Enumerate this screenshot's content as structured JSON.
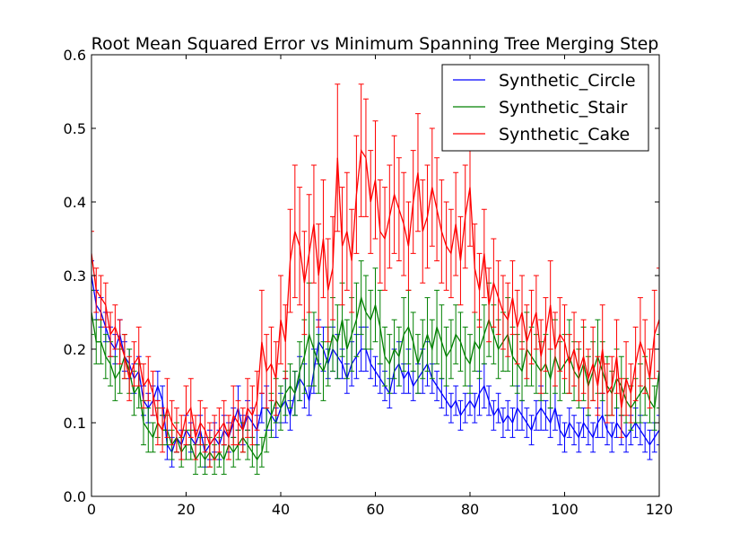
{
  "chart_data": {
    "type": "line",
    "title": "Root Mean Squared Error vs Minimum Spanning Tree Merging Step",
    "xlabel": "",
    "ylabel": "",
    "xlim": [
      0,
      120
    ],
    "ylim": [
      0.0,
      0.6
    ],
    "x_ticks": [
      "0",
      "20",
      "40",
      "60",
      "80",
      "100",
      "120"
    ],
    "y_ticks": [
      "0.0",
      "0.1",
      "0.2",
      "0.3",
      "0.4",
      "0.5",
      "0.6"
    ],
    "grid": false,
    "legend_position": "top-right",
    "x_step": 1,
    "series": [
      {
        "name": "Synthetic_Circle",
        "color": "#0000ff",
        "values": [
          0.3,
          0.26,
          0.25,
          0.23,
          0.21,
          0.2,
          0.22,
          0.19,
          0.18,
          0.16,
          0.17,
          0.13,
          0.12,
          0.13,
          0.15,
          0.13,
          0.07,
          0.06,
          0.08,
          0.07,
          0.09,
          0.08,
          0.07,
          0.09,
          0.06,
          0.07,
          0.08,
          0.07,
          0.09,
          0.08,
          0.1,
          0.12,
          0.09,
          0.11,
          0.1,
          0.09,
          0.12,
          0.12,
          0.11,
          0.1,
          0.12,
          0.13,
          0.11,
          0.14,
          0.16,
          0.15,
          0.13,
          0.17,
          0.21,
          0.2,
          0.18,
          0.2,
          0.19,
          0.18,
          0.16,
          0.18,
          0.19,
          0.2,
          0.2,
          0.18,
          0.17,
          0.16,
          0.15,
          0.14,
          0.17,
          0.18,
          0.16,
          0.17,
          0.15,
          0.16,
          0.17,
          0.18,
          0.16,
          0.15,
          0.14,
          0.13,
          0.12,
          0.13,
          0.11,
          0.12,
          0.13,
          0.12,
          0.14,
          0.15,
          0.13,
          0.11,
          0.12,
          0.1,
          0.11,
          0.1,
          0.12,
          0.11,
          0.1,
          0.09,
          0.11,
          0.12,
          0.11,
          0.1,
          0.12,
          0.09,
          0.08,
          0.1,
          0.09,
          0.08,
          0.1,
          0.09,
          0.08,
          0.1,
          0.11,
          0.09,
          0.08,
          0.1,
          0.09,
          0.08,
          0.09,
          0.1,
          0.09,
          0.08,
          0.07,
          0.08,
          0.09
        ],
        "errors": [
          0.02,
          0.02,
          0.02,
          0.02,
          0.02,
          0.02,
          0.02,
          0.02,
          0.02,
          0.02,
          0.02,
          0.02,
          0.02,
          0.02,
          0.02,
          0.02,
          0.02,
          0.02,
          0.02,
          0.02,
          0.02,
          0.02,
          0.02,
          0.02,
          0.02,
          0.02,
          0.02,
          0.02,
          0.02,
          0.02,
          0.02,
          0.03,
          0.02,
          0.02,
          0.02,
          0.02,
          0.02,
          0.03,
          0.02,
          0.02,
          0.02,
          0.03,
          0.02,
          0.03,
          0.03,
          0.03,
          0.02,
          0.03,
          0.03,
          0.03,
          0.02,
          0.03,
          0.03,
          0.02,
          0.02,
          0.03,
          0.03,
          0.03,
          0.03,
          0.02,
          0.02,
          0.02,
          0.02,
          0.02,
          0.03,
          0.03,
          0.02,
          0.03,
          0.02,
          0.02,
          0.03,
          0.03,
          0.02,
          0.02,
          0.02,
          0.02,
          0.02,
          0.02,
          0.02,
          0.02,
          0.02,
          0.02,
          0.03,
          0.03,
          0.02,
          0.02,
          0.02,
          0.02,
          0.02,
          0.02,
          0.03,
          0.02,
          0.02,
          0.02,
          0.02,
          0.03,
          0.02,
          0.02,
          0.03,
          0.02,
          0.02,
          0.02,
          0.02,
          0.02,
          0.02,
          0.02,
          0.02,
          0.02,
          0.03,
          0.02,
          0.02,
          0.02,
          0.02,
          0.02,
          0.02,
          0.02,
          0.02,
          0.02,
          0.02,
          0.02,
          0.02
        ]
      },
      {
        "name": "Synthetic_Stair",
        "color": "#008000",
        "values": [
          0.25,
          0.21,
          0.21,
          0.19,
          0.18,
          0.16,
          0.17,
          0.19,
          0.17,
          0.14,
          0.15,
          0.1,
          0.09,
          0.08,
          0.1,
          0.09,
          0.09,
          0.07,
          0.08,
          0.06,
          0.07,
          0.07,
          0.05,
          0.06,
          0.05,
          0.06,
          0.05,
          0.06,
          0.05,
          0.07,
          0.06,
          0.07,
          0.08,
          0.07,
          0.06,
          0.05,
          0.06,
          0.09,
          0.11,
          0.13,
          0.12,
          0.14,
          0.15,
          0.14,
          0.17,
          0.19,
          0.22,
          0.2,
          0.18,
          0.17,
          0.19,
          0.22,
          0.21,
          0.24,
          0.2,
          0.22,
          0.24,
          0.27,
          0.25,
          0.24,
          0.26,
          0.23,
          0.19,
          0.18,
          0.2,
          0.19,
          0.22,
          0.23,
          0.21,
          0.18,
          0.2,
          0.22,
          0.2,
          0.23,
          0.21,
          0.19,
          0.2,
          0.22,
          0.21,
          0.19,
          0.18,
          0.21,
          0.2,
          0.22,
          0.24,
          0.22,
          0.2,
          0.21,
          0.22,
          0.19,
          0.18,
          0.17,
          0.2,
          0.19,
          0.18,
          0.17,
          0.18,
          0.16,
          0.19,
          0.17,
          0.18,
          0.19,
          0.17,
          0.16,
          0.18,
          0.15,
          0.17,
          0.19,
          0.17,
          0.15,
          0.14,
          0.16,
          0.15,
          0.13,
          0.12,
          0.13,
          0.14,
          0.15,
          0.13,
          0.12,
          0.17
        ],
        "errors": [
          0.03,
          0.03,
          0.03,
          0.03,
          0.03,
          0.03,
          0.03,
          0.03,
          0.03,
          0.03,
          0.03,
          0.03,
          0.03,
          0.02,
          0.02,
          0.02,
          0.02,
          0.02,
          0.02,
          0.02,
          0.02,
          0.02,
          0.02,
          0.02,
          0.02,
          0.02,
          0.02,
          0.02,
          0.02,
          0.02,
          0.02,
          0.02,
          0.02,
          0.02,
          0.02,
          0.02,
          0.02,
          0.03,
          0.03,
          0.03,
          0.03,
          0.03,
          0.03,
          0.03,
          0.04,
          0.05,
          0.07,
          0.05,
          0.04,
          0.04,
          0.04,
          0.05,
          0.05,
          0.05,
          0.04,
          0.05,
          0.05,
          0.05,
          0.05,
          0.04,
          0.05,
          0.05,
          0.04,
          0.04,
          0.04,
          0.04,
          0.05,
          0.05,
          0.04,
          0.04,
          0.04,
          0.05,
          0.04,
          0.05,
          0.05,
          0.04,
          0.04,
          0.04,
          0.04,
          0.04,
          0.04,
          0.04,
          0.04,
          0.04,
          0.05,
          0.04,
          0.04,
          0.04,
          0.05,
          0.04,
          0.04,
          0.04,
          0.05,
          0.04,
          0.04,
          0.04,
          0.04,
          0.04,
          0.05,
          0.04,
          0.04,
          0.05,
          0.04,
          0.04,
          0.05,
          0.04,
          0.04,
          0.05,
          0.04,
          0.04,
          0.03,
          0.04,
          0.04,
          0.03,
          0.03,
          0.03,
          0.04,
          0.04,
          0.03,
          0.03,
          0.05
        ]
      },
      {
        "name": "Synthetic_Cake",
        "color": "#ff0000",
        "values": [
          0.33,
          0.28,
          0.27,
          0.26,
          0.22,
          0.23,
          0.21,
          0.19,
          0.16,
          0.18,
          0.19,
          0.15,
          0.16,
          0.14,
          0.1,
          0.09,
          0.12,
          0.1,
          0.09,
          0.08,
          0.11,
          0.12,
          0.08,
          0.1,
          0.09,
          0.07,
          0.08,
          0.09,
          0.1,
          0.08,
          0.11,
          0.1,
          0.09,
          0.12,
          0.11,
          0.13,
          0.21,
          0.17,
          0.18,
          0.16,
          0.24,
          0.21,
          0.32,
          0.36,
          0.34,
          0.29,
          0.33,
          0.37,
          0.3,
          0.35,
          0.28,
          0.31,
          0.46,
          0.34,
          0.36,
          0.32,
          0.41,
          0.47,
          0.46,
          0.4,
          0.43,
          0.36,
          0.35,
          0.38,
          0.41,
          0.39,
          0.37,
          0.34,
          0.4,
          0.44,
          0.36,
          0.38,
          0.42,
          0.39,
          0.36,
          0.34,
          0.33,
          0.37,
          0.32,
          0.38,
          0.42,
          0.31,
          0.28,
          0.33,
          0.26,
          0.29,
          0.27,
          0.25,
          0.24,
          0.27,
          0.23,
          0.25,
          0.21,
          0.23,
          0.25,
          0.19,
          0.22,
          0.26,
          0.2,
          0.22,
          0.21,
          0.18,
          0.2,
          0.17,
          0.19,
          0.16,
          0.18,
          0.15,
          0.2,
          0.14,
          0.15,
          0.19,
          0.12,
          0.16,
          0.14,
          0.18,
          0.21,
          0.19,
          0.16,
          0.22,
          0.24
        ],
        "errors": [
          0.03,
          0.03,
          0.03,
          0.03,
          0.03,
          0.03,
          0.03,
          0.03,
          0.03,
          0.03,
          0.04,
          0.03,
          0.03,
          0.03,
          0.03,
          0.03,
          0.04,
          0.03,
          0.03,
          0.03,
          0.04,
          0.04,
          0.03,
          0.03,
          0.03,
          0.03,
          0.03,
          0.03,
          0.03,
          0.03,
          0.04,
          0.03,
          0.03,
          0.04,
          0.04,
          0.04,
          0.07,
          0.05,
          0.05,
          0.05,
          0.06,
          0.05,
          0.07,
          0.09,
          0.08,
          0.07,
          0.08,
          0.08,
          0.07,
          0.08,
          0.07,
          0.07,
          0.1,
          0.08,
          0.08,
          0.07,
          0.08,
          0.09,
          0.08,
          0.07,
          0.08,
          0.07,
          0.07,
          0.07,
          0.08,
          0.07,
          0.07,
          0.06,
          0.07,
          0.08,
          0.07,
          0.07,
          0.08,
          0.07,
          0.07,
          0.06,
          0.06,
          0.07,
          0.06,
          0.07,
          0.08,
          0.06,
          0.05,
          0.06,
          0.05,
          0.06,
          0.05,
          0.05,
          0.05,
          0.05,
          0.05,
          0.05,
          0.05,
          0.05,
          0.05,
          0.05,
          0.05,
          0.06,
          0.05,
          0.05,
          0.05,
          0.04,
          0.05,
          0.04,
          0.05,
          0.04,
          0.05,
          0.04,
          0.06,
          0.04,
          0.04,
          0.05,
          0.04,
          0.05,
          0.04,
          0.05,
          0.06,
          0.05,
          0.04,
          0.06,
          0.07
        ]
      }
    ]
  }
}
